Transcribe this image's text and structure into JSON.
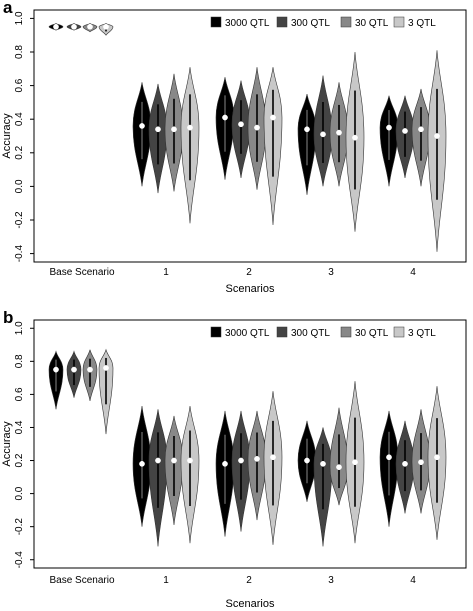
{
  "chart_data": [
    {
      "type": "violin",
      "panel_label": "a",
      "xlabel": "Scenarios",
      "ylabel": "Accuracy",
      "ylim": [
        -0.45,
        1.05
      ],
      "yticks": [
        -0.4,
        -0.2,
        0.0,
        0.2,
        0.4,
        0.6,
        0.8,
        1.0
      ],
      "categories": [
        "Base Scenario",
        "1",
        "2",
        "3",
        "4"
      ],
      "legend_position": "top-right",
      "series": [
        {
          "name": "3000 QTL",
          "color": "#000000",
          "medians": [
            0.95,
            0.36,
            0.41,
            0.34,
            0.35
          ],
          "ranges": [
            [
              0.93,
              0.97
            ],
            [
              0.0,
              0.62
            ],
            [
              0.04,
              0.65
            ],
            [
              -0.05,
              0.55
            ],
            [
              0.0,
              0.54
            ]
          ]
        },
        {
          "name": "300 QTL",
          "color": "#444444",
          "medians": [
            0.95,
            0.34,
            0.37,
            0.31,
            0.33
          ],
          "ranges": [
            [
              0.93,
              0.97
            ],
            [
              -0.04,
              0.61
            ],
            [
              0.05,
              0.63
            ],
            [
              0.0,
              0.66
            ],
            [
              0.05,
              0.54
            ]
          ]
        },
        {
          "name": "30 QTL",
          "color": "#888888",
          "medians": [
            0.95,
            0.34,
            0.35,
            0.32,
            0.34
          ],
          "ranges": [
            [
              0.92,
              0.97
            ],
            [
              -0.03,
              0.67
            ],
            [
              -0.02,
              0.71
            ],
            [
              0.0,
              0.62
            ],
            [
              0.0,
              0.58
            ]
          ]
        },
        {
          "name": "3 QTL",
          "color": "#c8c8c8",
          "medians": [
            0.95,
            0.35,
            0.41,
            0.29,
            0.3
          ],
          "ranges": [
            [
              0.9,
              0.97
            ],
            [
              -0.22,
              0.71
            ],
            [
              -0.23,
              0.71
            ],
            [
              -0.27,
              0.8
            ],
            [
              -0.39,
              0.81
            ]
          ]
        }
      ]
    },
    {
      "type": "violin",
      "panel_label": "b",
      "xlabel": "Scenarios",
      "ylabel": "Accuracy",
      "ylim": [
        -0.45,
        1.05
      ],
      "yticks": [
        -0.4,
        -0.2,
        0.0,
        0.2,
        0.4,
        0.6,
        0.8,
        1.0
      ],
      "categories": [
        "Base Scenario",
        "1",
        "2",
        "3",
        "4"
      ],
      "legend_position": "top-right",
      "series": [
        {
          "name": "3000 QTL",
          "color": "#000000",
          "medians": [
            0.75,
            0.18,
            0.18,
            0.2,
            0.22
          ],
          "ranges": [
            [
              0.51,
              0.86
            ],
            [
              -0.2,
              0.53
            ],
            [
              -0.26,
              0.5
            ],
            [
              -0.05,
              0.44
            ],
            [
              -0.2,
              0.5
            ]
          ]
        },
        {
          "name": "300 QTL",
          "color": "#444444",
          "medians": [
            0.75,
            0.2,
            0.2,
            0.18,
            0.18
          ],
          "ranges": [
            [
              0.58,
              0.86
            ],
            [
              -0.32,
              0.51
            ],
            [
              -0.23,
              0.5
            ],
            [
              -0.32,
              0.4
            ],
            [
              -0.12,
              0.44
            ]
          ]
        },
        {
          "name": "30 QTL",
          "color": "#888888",
          "medians": [
            0.75,
            0.2,
            0.21,
            0.16,
            0.19
          ],
          "ranges": [
            [
              0.56,
              0.87
            ],
            [
              -0.19,
              0.47
            ],
            [
              -0.16,
              0.5
            ],
            [
              -0.07,
              0.52
            ],
            [
              -0.12,
              0.51
            ]
          ]
        },
        {
          "name": "3 QTL",
          "color": "#c8c8c8",
          "medians": [
            0.76,
            0.2,
            0.22,
            0.19,
            0.22
          ],
          "ranges": [
            [
              0.36,
              0.87
            ],
            [
              -0.3,
              0.53
            ],
            [
              -0.31,
              0.62
            ],
            [
              -0.3,
              0.68
            ],
            [
              -0.28,
              0.65
            ]
          ]
        }
      ]
    }
  ]
}
